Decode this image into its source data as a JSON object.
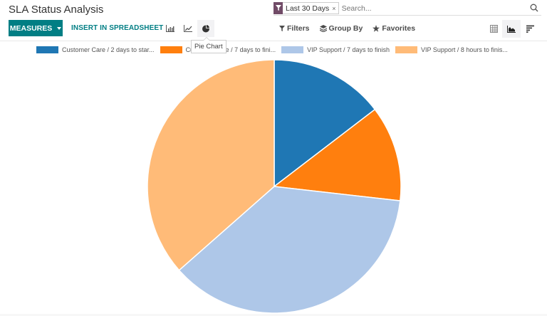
{
  "header": {
    "title": "SLA Status Analysis"
  },
  "search": {
    "facet_icon": "filter-icon",
    "facet_label": "Last 30 Days",
    "facet_close": "×",
    "placeholder": "Search...",
    "search_icon": "magnifier-icon"
  },
  "toolbar": {
    "measures_label": "MEASURES",
    "insert_label": "INSERT IN SPREADSHEET",
    "chart_types": [
      {
        "name": "bar-chart",
        "icon": "bar-chart-icon"
      },
      {
        "name": "line-chart",
        "icon": "line-chart-icon"
      },
      {
        "name": "pie-chart",
        "icon": "pie-chart-icon",
        "active": true
      }
    ],
    "tooltip": "Pie Chart",
    "filters_label": "Filters",
    "groupby_label": "Group By",
    "favorites_label": "Favorites",
    "views": [
      {
        "name": "pivot",
        "icon": "pivot-table-icon"
      },
      {
        "name": "graph",
        "icon": "area-chart-icon",
        "active": true
      },
      {
        "name": "cohort",
        "icon": "cohort-bars-icon"
      }
    ]
  },
  "colors": {
    "brand": "#017e84",
    "facet": "#714b67"
  },
  "chart_data": {
    "type": "pie",
    "title": "SLA Status Analysis",
    "legend_position": "top",
    "categories": [
      "Customer Care / 2 days to star...",
      "Customer Care / 7 days to fini...",
      "VIP Support / 7 days to finish",
      "VIP Support / 8 hours to finis..."
    ],
    "values": [
      14.6,
      12.2,
      36.7,
      36.5
    ],
    "colors": [
      "#1f77b4",
      "#ff7f0e",
      "#aec7e8",
      "#ffbb78"
    ],
    "value_unit": "% of total (estimated from slice angles)"
  }
}
